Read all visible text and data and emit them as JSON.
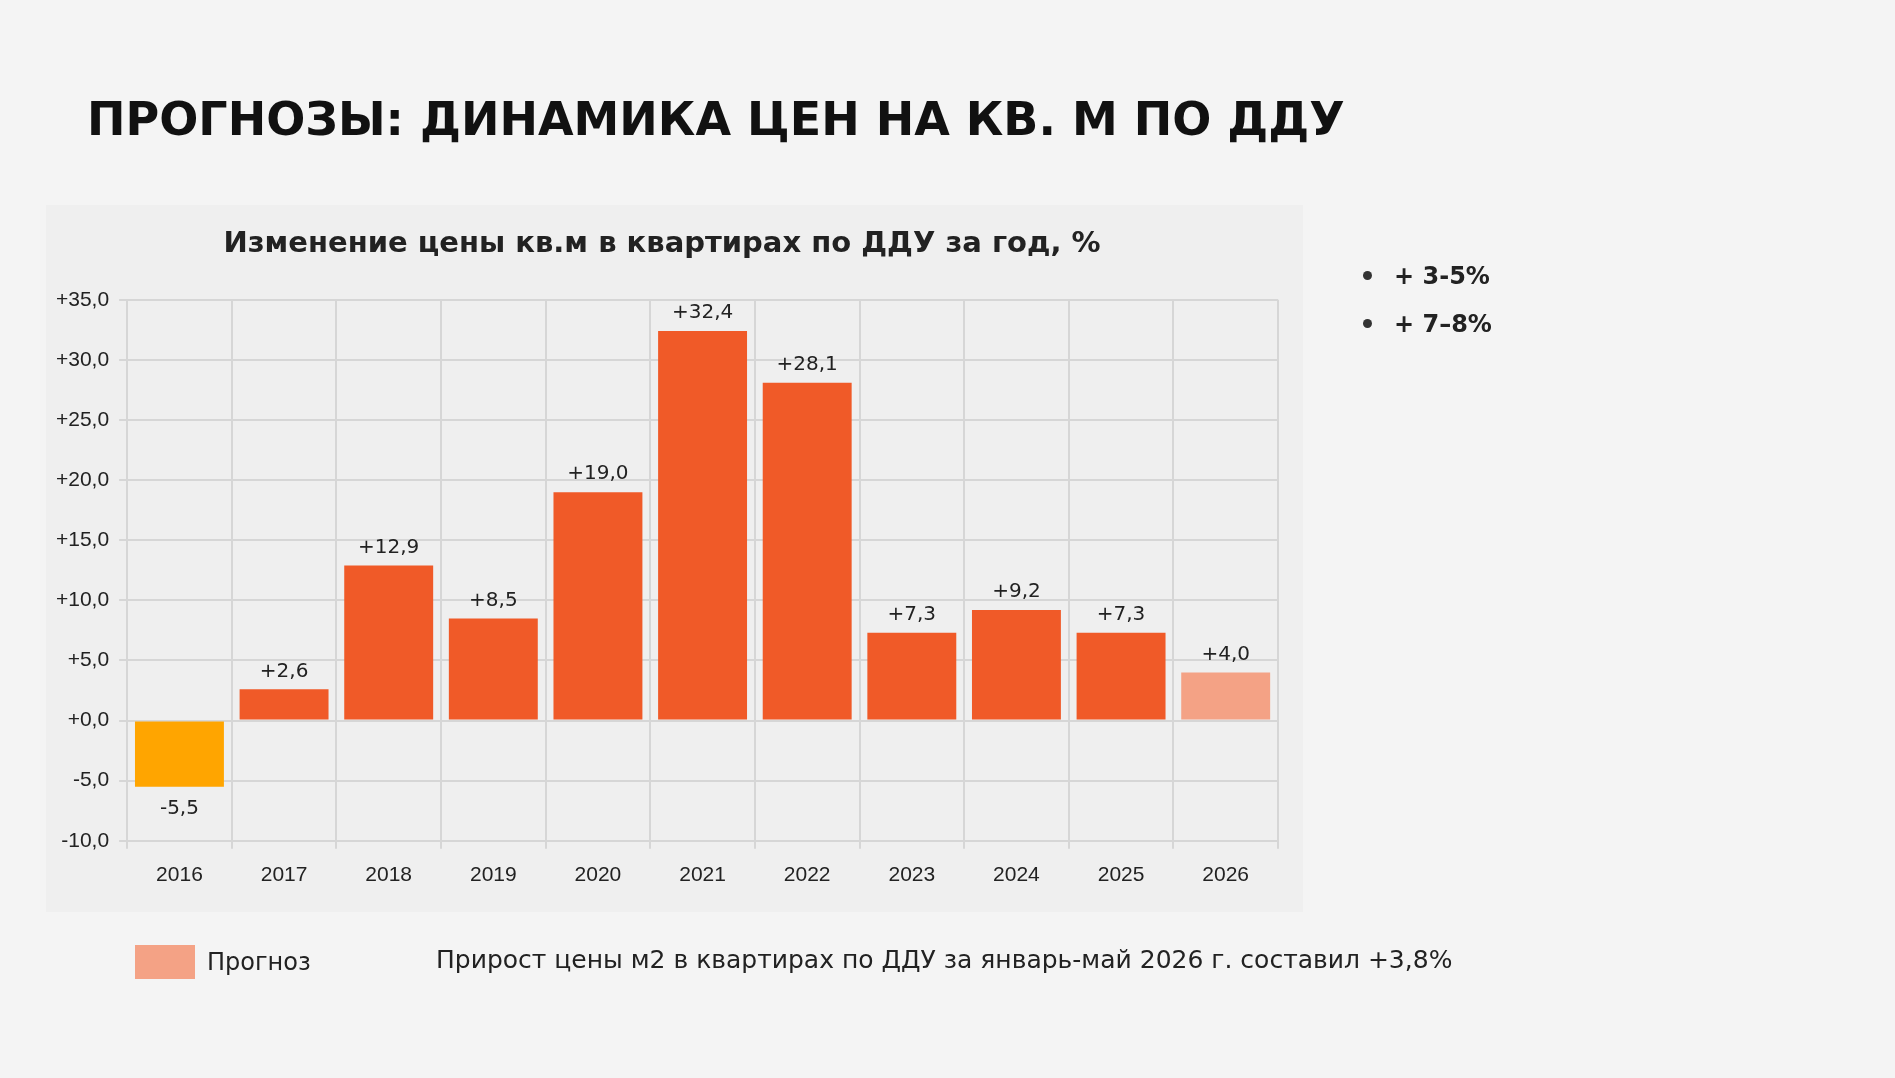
{
  "chart_data": {
    "type": "bar",
    "title": "ПРОГНОЗЫ: ДИНАМИКА ЦЕН НА КВ. М ПО ДДУ",
    "subtitle": "Изменение цены кв.м в квартирах по ДДУ за год, %",
    "categories": [
      "2016",
      "2017",
      "2018",
      "2019",
      "2020",
      "2021",
      "2022",
      "2023",
      "2024",
      "2025",
      "2026"
    ],
    "values": [
      -5.5,
      2.6,
      12.9,
      8.5,
      19.0,
      32.4,
      28.1,
      7.3,
      9.2,
      7.3,
      4.0
    ],
    "colors": [
      "#ffa500",
      "#f05a28",
      "#f05a28",
      "#f05a28",
      "#f05a28",
      "#f05a28",
      "#f05a28",
      "#f05a28",
      "#f05a28",
      "#f05a28",
      "#f4a285"
    ],
    "value_labels": [
      "-5,5",
      "+2,6",
      "+12,9",
      "+8,5",
      "+19,0",
      "+32,4",
      "+28,1",
      "+7,3",
      "+9,2",
      "+7,3",
      "+4,0"
    ],
    "ylim": [
      -10,
      35
    ],
    "yticks": [
      {
        "value": -10,
        "label": "-10,0"
      },
      {
        "value": -5,
        "label": "-5,0"
      },
      {
        "value": 0,
        "label": "+0,0"
      },
      {
        "value": 5,
        "label": "+5,0"
      },
      {
        "value": 10,
        "label": "+10,0"
      },
      {
        "value": 15,
        "label": "+15,0"
      },
      {
        "value": 20,
        "label": "+20,0"
      },
      {
        "value": 25,
        "label": "+25,0"
      },
      {
        "value": 30,
        "label": "+30,0"
      },
      {
        "value": 35,
        "label": "+35,0"
      }
    ],
    "grid": true,
    "annotations": [
      "+ 3-5%",
      "+ 7–8%",
      "Прогноз",
      "Прирост цены м2 в квартирах по ДДУ за январь-май 2026 г. составил +3,8%"
    ]
  }
}
